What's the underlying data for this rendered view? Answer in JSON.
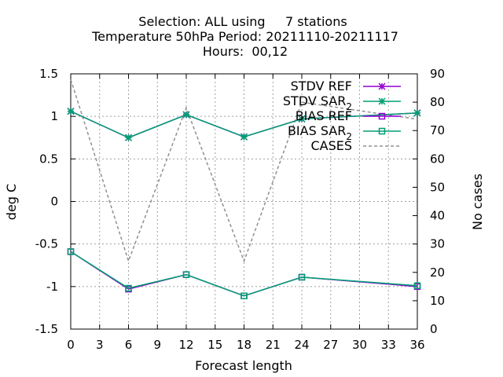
{
  "chart_data": {
    "type": "line",
    "title_lines": [
      "Selection: ALL using     7 stations",
      "Temperature 50hPa   Period: 20211110-20211117",
      "Hours:  00,12"
    ],
    "xlabel": "Forecast length",
    "ylabel": "deg C",
    "y2label": "No cases",
    "x_ticks": [
      0,
      3,
      6,
      9,
      12,
      15,
      18,
      21,
      24,
      27,
      30,
      33,
      36
    ],
    "y_ticks": [
      1.5,
      1,
      0.5,
      0,
      -0.5,
      -1,
      -1.5
    ],
    "y2_ticks": [
      90,
      80,
      70,
      60,
      50,
      40,
      30,
      20,
      10,
      0
    ],
    "xlim": [
      0,
      36
    ],
    "ylim": [
      -1.5,
      1.5
    ],
    "y2lim": [
      0,
      90
    ],
    "grid": true,
    "legend_position": "top-right",
    "x": [
      0,
      6,
      12,
      18,
      24,
      36
    ],
    "series": [
      {
        "name": "STDV REF",
        "name_sub": "",
        "axis": "y",
        "marker": "star",
        "color": "#9400d3",
        "values": [
          1.06,
          0.75,
          1.02,
          0.76,
          0.97,
          1.04
        ]
      },
      {
        "name": "STDV SAR",
        "name_sub": "2",
        "axis": "y",
        "marker": "star",
        "color": "#009e73",
        "values": [
          1.06,
          0.75,
          1.02,
          0.76,
          0.97,
          1.04
        ]
      },
      {
        "name": "BIAS REF",
        "name_sub": "",
        "axis": "y",
        "marker": "square",
        "color": "#9400d3",
        "values": [
          -0.59,
          -1.03,
          -0.86,
          -1.11,
          -0.89,
          -1.0
        ]
      },
      {
        "name": "BIAS SAR",
        "name_sub": "2",
        "axis": "y",
        "marker": "square",
        "color": "#009e73",
        "values": [
          -0.59,
          -1.02,
          -0.86,
          -1.11,
          -0.89,
          -0.99
        ]
      },
      {
        "name": "CASES",
        "name_sub": "",
        "axis": "y2",
        "marker": "none",
        "color": "#909090",
        "dashed": true,
        "values": [
          88,
          24,
          78,
          24,
          80,
          74
        ]
      }
    ]
  }
}
